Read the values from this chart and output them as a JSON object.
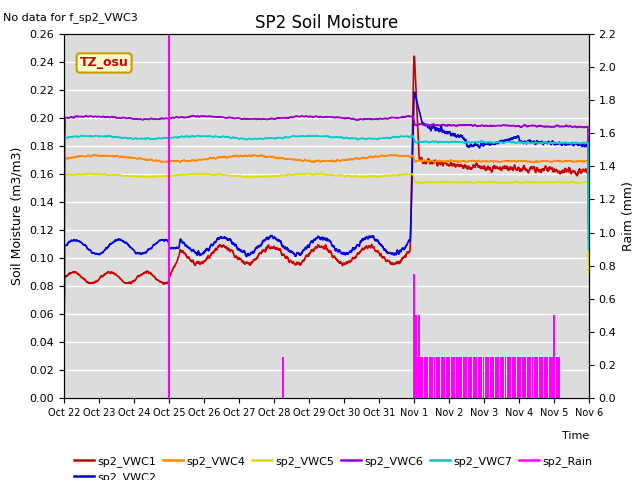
{
  "title": "SP2 Soil Moisture",
  "no_data_text": "No data for f_sp2_VWC3",
  "xlabel": "Time",
  "ylabel_left": "Soil Moisture (m3/m3)",
  "ylabel_right": "Raim (mm)",
  "ylim_left": [
    0,
    0.26
  ],
  "ylim_right": [
    0,
    2.2
  ],
  "x_tick_labels": [
    "Oct 22",
    "Oct 23",
    "Oct 24",
    "Oct 25",
    "Oct 26",
    "Oct 27",
    "Oct 28",
    "Oct 29",
    "Oct 30",
    "Oct 31",
    "Nov 1",
    "Nov 2",
    "Nov 3",
    "Nov 4",
    "Nov 5",
    "Nov 6"
  ],
  "bg_color": "#dcdcdc",
  "grid_color": "#ffffff",
  "tz_label": "TZ_osu",
  "tz_bg": "#ffffcc",
  "tz_border": "#cc9900",
  "colors": {
    "vwc1": "#cc0000",
    "vwc2": "#0000dd",
    "vwc4": "#ff8800",
    "vwc5": "#dddd00",
    "vwc6": "#9900cc",
    "vwc7": "#00cccc",
    "rain": "#ff00ff"
  }
}
